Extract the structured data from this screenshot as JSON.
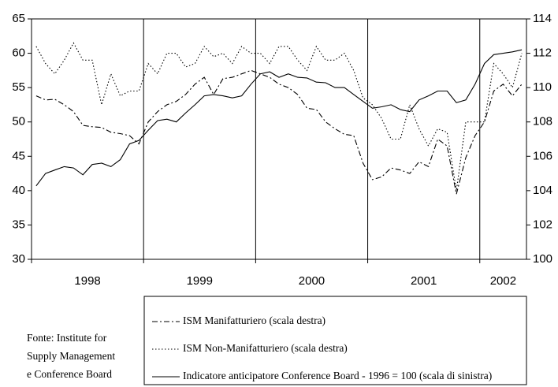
{
  "chart_data": {
    "type": "line",
    "categories": [
      "1998",
      null,
      null,
      null,
      null,
      null,
      null,
      null,
      null,
      null,
      null,
      null,
      "1999",
      null,
      null,
      null,
      null,
      null,
      null,
      null,
      null,
      null,
      null,
      null,
      "2000",
      null,
      null,
      null,
      null,
      null,
      null,
      null,
      null,
      null,
      null,
      null,
      "2001",
      null,
      null,
      null,
      null,
      null,
      null,
      null,
      null,
      null,
      null,
      null,
      "2002",
      null,
      null,
      null,
      null
    ],
    "ylim": [
      30,
      65
    ],
    "yticks": [
      30,
      35,
      40,
      45,
      50,
      55,
      60,
      65
    ],
    "y2lim": [
      100,
      114
    ],
    "y2ticks": [
      100,
      102,
      104,
      106,
      108,
      110,
      112,
      114
    ],
    "series": [
      {
        "name": "ISM Manifatturiero (scala destra)",
        "color": "#000000",
        "style": "dashdot",
        "axis": "y2",
        "values": [
          109.52,
          109.28,
          109.32,
          109,
          108.6,
          107.8,
          107.72,
          107.68,
          107.4,
          107.32,
          107.2,
          106.72,
          108,
          108.6,
          109,
          109.2,
          109.6,
          110.2,
          110.6,
          109.6,
          110.52,
          110.6,
          110.8,
          111,
          110.8,
          110.6,
          110.2,
          110,
          109.6,
          108.8,
          108.72,
          108,
          107.6,
          107.28,
          107.2,
          105.6,
          104.64,
          104.8,
          105.32,
          105.2,
          105,
          105.68,
          105.4,
          107,
          106.6,
          103.8,
          105.92,
          107.2,
          108,
          109.8,
          110.2,
          109.52,
          110.2
        ]
      },
      {
        "name": "ISM Non-Manifatturiero (scala destra)",
        "color": "#000000",
        "style": "dotted",
        "axis": "y2",
        "values": [
          112.4,
          111.4,
          110.8,
          111.6,
          112.6,
          111.6,
          111.6,
          109,
          110.8,
          109.52,
          109.8,
          109.8,
          111.4,
          110.8,
          112,
          112,
          111.2,
          111.4,
          112.4,
          111.8,
          112,
          111.4,
          112.4,
          112,
          112,
          111.4,
          112.4,
          112.4,
          111.6,
          111,
          112.4,
          111.6,
          111.6,
          112,
          111,
          109.4,
          109,
          108.2,
          107,
          107,
          109,
          107.6,
          106.6,
          107.6,
          107.4,
          104,
          108,
          108,
          108,
          111.4,
          110.8,
          110,
          112
        ]
      },
      {
        "name": "Indicatore anticipatore Conference Board - 1996 = 100 (scala di sinistra)",
        "color": "#000000",
        "style": "solid",
        "values": [
          40.7,
          42.5,
          43,
          43.5,
          43.3,
          42.3,
          43.8,
          44,
          43.5,
          44.5,
          46.8,
          47.3,
          48.8,
          50.2,
          50.4,
          50,
          51.3,
          52.5,
          53.8,
          54,
          53.8,
          53.5,
          53.8,
          55.5,
          57,
          57.3,
          56.5,
          57,
          56.5,
          56.4,
          55.8,
          55.7,
          55,
          55,
          54,
          53,
          52,
          52.2,
          52.5,
          51.8,
          51.5,
          53.2,
          53.8,
          54.5,
          54.5,
          52.8,
          53.2,
          55.5,
          58.5,
          59.8,
          60,
          60.2,
          60.5
        ]
      }
    ],
    "source": [
      "Fonte: Institute for",
      "Supply Management",
      "e Conference Board"
    ]
  }
}
